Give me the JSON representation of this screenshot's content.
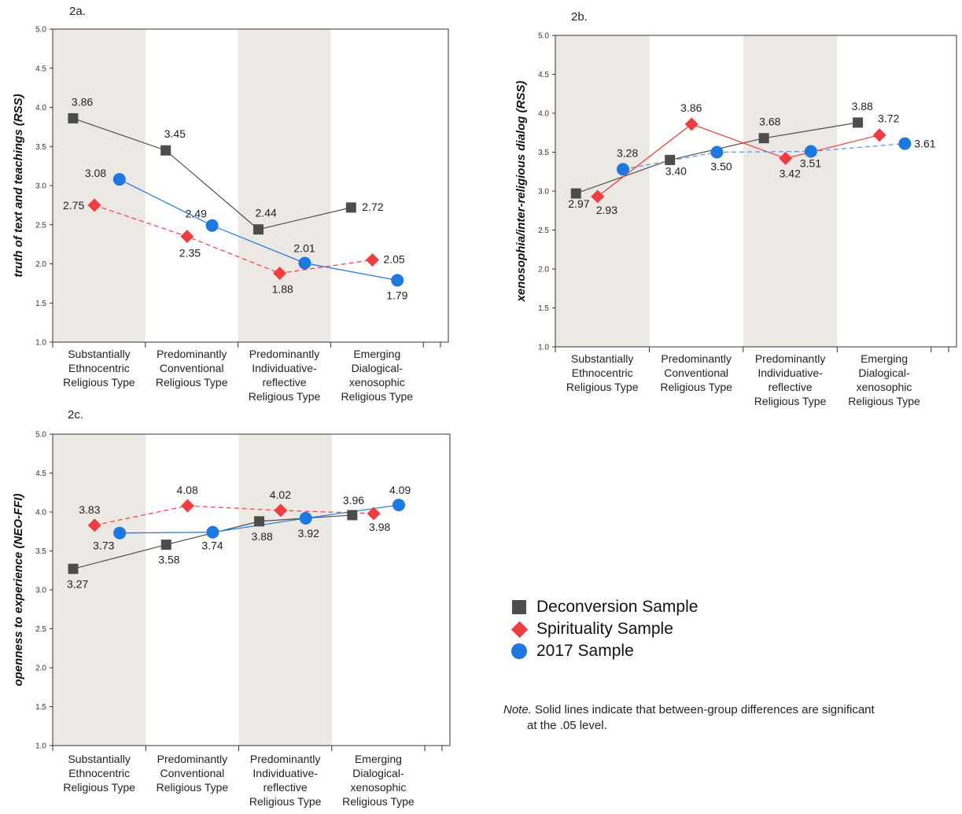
{
  "legend": [
    {
      "name": "Deconversion Sample",
      "marker": "square",
      "color": "#4d4d4d"
    },
    {
      "name": "Spirituality Sample",
      "marker": "diamond",
      "color": "#ef3e42"
    },
    {
      "name": "2017 Sample",
      "marker": "circle",
      "color": "#1f77e0"
    }
  ],
  "note": {
    "label": "Note.",
    "line1": " Solid lines indicate that between-group differences are significant",
    "line2": "at the .05 level."
  },
  "colors": {
    "deconversion": "#4d4d4d",
    "spirituality": "#ef3e42",
    "sample2017": "#1f77e0",
    "shade": "#ece8e4"
  },
  "chart_data": [
    {
      "panel": "2a.",
      "type": "line",
      "ylabel": "truth of text and teachings (RSS)",
      "ylim": [
        1.0,
        5.0
      ],
      "yticks": [
        "1.0",
        "1.5",
        "2.0",
        "2.5",
        "3.0",
        "3.5",
        "4.0",
        "4.5",
        "5.0"
      ],
      "categories": [
        [
          "Substantially",
          "Ethnocentric",
          "Religious Type"
        ],
        [
          "Predominantly",
          "Conventional",
          "Religious Type"
        ],
        [
          "Predominantly",
          "Individuative-",
          "reflective",
          "Religious Type"
        ],
        [
          "Emerging",
          "Dialogical-",
          "xenosophic",
          "Religious Type"
        ]
      ],
      "series": [
        {
          "name": "Deconversion Sample",
          "values": [
            3.86,
            3.45,
            2.44,
            2.72
          ],
          "labels": [
            "3.86",
            "3.45",
            "2.44",
            "2.72"
          ],
          "line": "solid"
        },
        {
          "name": "Spirituality Sample",
          "values": [
            2.75,
            2.35,
            1.88,
            2.05
          ],
          "labels": [
            "2.75",
            "2.35",
            "1.88",
            "2.05"
          ],
          "line": "dashed"
        },
        {
          "name": "2017 Sample",
          "values": [
            3.08,
            2.49,
            2.01,
            1.79
          ],
          "labels": [
            "3.08",
            "2.49",
            "2.01",
            "1.79"
          ],
          "line": "solid"
        }
      ]
    },
    {
      "panel": "2b.",
      "type": "line",
      "ylabel": "xenosophia/inter-religious dialog (RSS)",
      "ylim": [
        1.0,
        5.0
      ],
      "yticks": [
        "1.0",
        "1.5",
        "2.0",
        "2.5",
        "3.0",
        "3.5",
        "4.0",
        "4.5",
        "5.0"
      ],
      "categories": [
        [
          "Substantially",
          "Ethnocentric",
          "Religious Type"
        ],
        [
          "Predominantly",
          "Conventional",
          "Religious Type"
        ],
        [
          "Predominantly",
          "Individuative-",
          "reflective",
          "Religious Type"
        ],
        [
          "Emerging",
          "Dialogical-",
          "xenosophic",
          "Religious Type"
        ]
      ],
      "series": [
        {
          "name": "Deconversion Sample",
          "values": [
            2.97,
            3.4,
            3.68,
            3.88
          ],
          "labels": [
            "2.97",
            "3.40",
            "3.68",
            "3.88"
          ],
          "line": "solid"
        },
        {
          "name": "Spirituality Sample",
          "values": [
            2.93,
            3.86,
            3.42,
            3.72
          ],
          "labels": [
            "2.93",
            "3.86",
            "3.42",
            "3.72"
          ],
          "line": "solid"
        },
        {
          "name": "2017 Sample",
          "values": [
            3.28,
            3.5,
            3.51,
            3.61
          ],
          "labels": [
            "3.28",
            "3.50",
            "3.51",
            "3.61"
          ],
          "line": "dashed"
        }
      ]
    },
    {
      "panel": "2c.",
      "type": "line",
      "ylabel": "openness to experience (NEO-FFI)",
      "ylim": [
        1.0,
        5.0
      ],
      "yticks": [
        "1.0",
        "1.5",
        "2.0",
        "2.5",
        "3.0",
        "3.5",
        "4.0",
        "4.5",
        "5.0"
      ],
      "categories": [
        [
          "Substantially",
          "Ethnocentric",
          "Religious Type"
        ],
        [
          "Predominantly",
          "Conventional",
          "Religious Type"
        ],
        [
          "Predominantly",
          "Individuative-",
          "reflective",
          "Religious Type"
        ],
        [
          "Emerging",
          "Dialogical-",
          "xenosophic",
          "Religious Type"
        ]
      ],
      "series": [
        {
          "name": "Deconversion Sample",
          "values": [
            3.27,
            3.58,
            3.88,
            3.96
          ],
          "labels": [
            "3.27",
            "3.58",
            "3.88",
            "3.96"
          ],
          "line": "solid"
        },
        {
          "name": "Spirituality Sample",
          "values": [
            3.83,
            4.08,
            4.02,
            3.98
          ],
          "labels": [
            "3.83",
            "4.08",
            "4.02",
            "3.98"
          ],
          "line": "dashed"
        },
        {
          "name": "2017 Sample",
          "values": [
            3.73,
            3.74,
            3.92,
            4.09
          ],
          "labels": [
            "3.73",
            "3.74",
            "3.92",
            "4.09"
          ],
          "line": "solid"
        }
      ]
    }
  ]
}
